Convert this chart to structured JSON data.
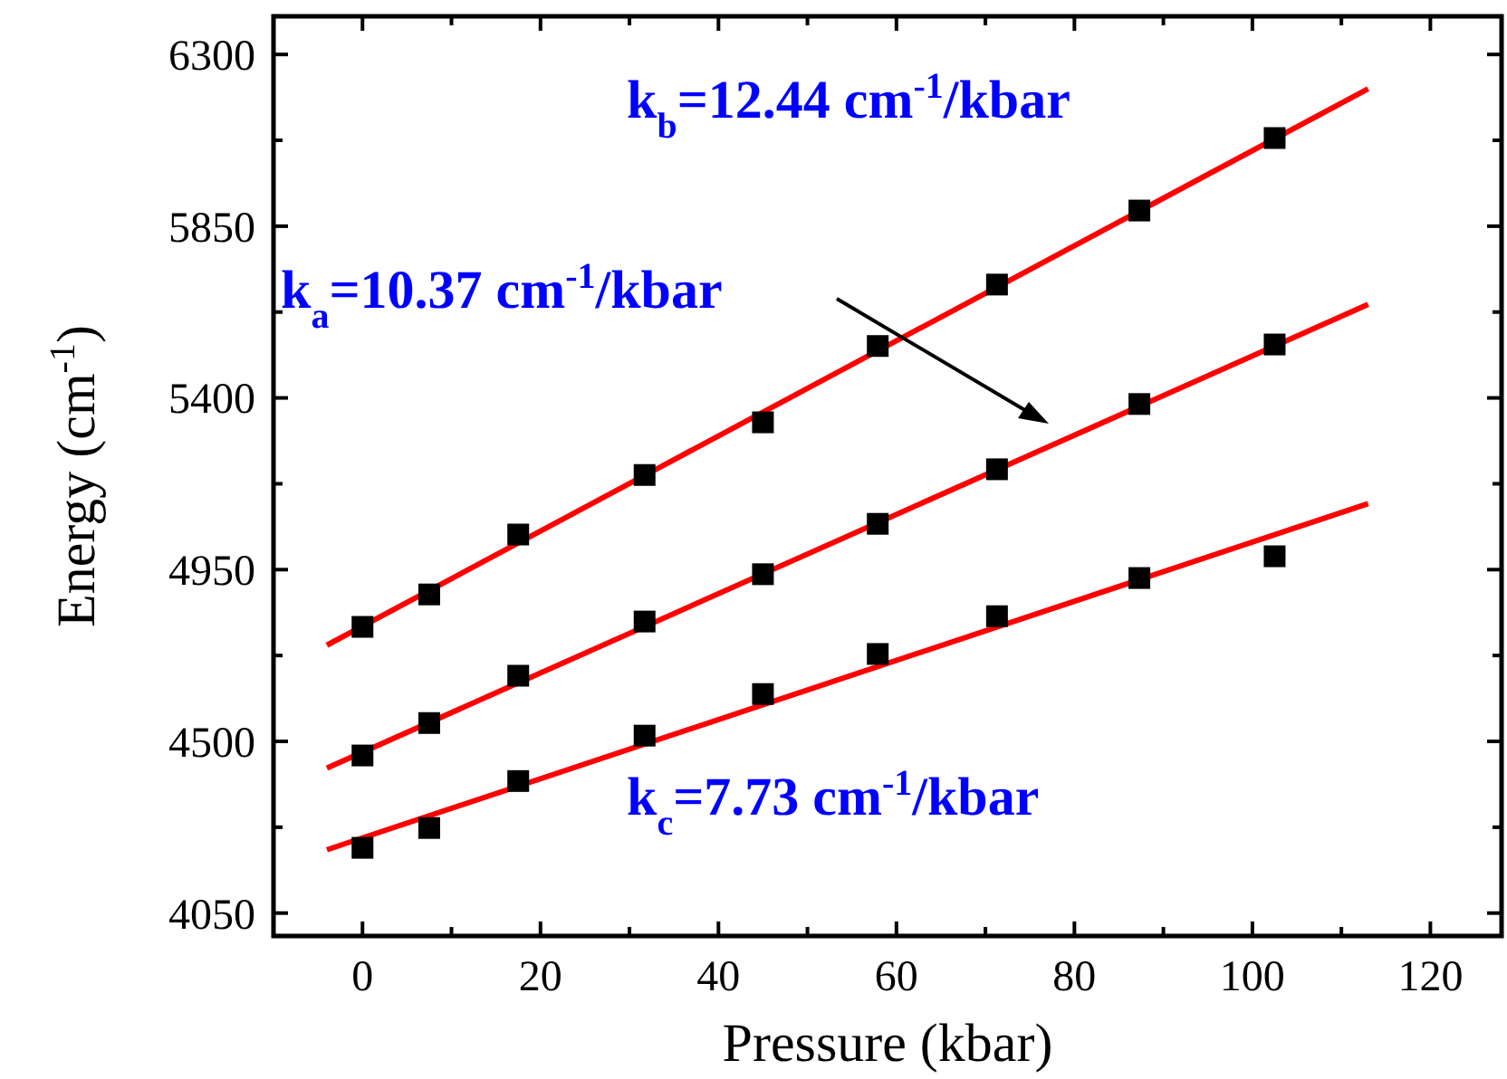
{
  "chart_data": {
    "type": "scatter",
    "xlabel": "Pressure (kbar)",
    "ylabel": "Energy (cm$^{-1}$)",
    "xlim": [
      -10,
      128
    ],
    "ylim": [
      3990,
      6400
    ],
    "xticks": [
      0,
      20,
      40,
      60,
      80,
      100,
      120
    ],
    "yticks": [
      4050,
      4500,
      4950,
      5400,
      5850,
      6300
    ],
    "grid": false,
    "marker": "square",
    "series": [
      {
        "color": "#000000",
        "x": [
          0,
          7.5,
          17.5,
          31.7,
          45,
          57.9,
          71.3,
          87.3,
          102.5
        ],
        "values": [
          4800,
          4885,
          5042,
          5198,
          5336,
          5536,
          5697,
          5891,
          6081
        ]
      },
      {
        "color": "#000000",
        "x": [
          0,
          7.5,
          17.5,
          31.7,
          45,
          57.9,
          71.3,
          87.3,
          102.5
        ],
        "values": [
          4463,
          4548,
          4672,
          4814,
          4938,
          5070,
          5213,
          5384,
          5540
        ]
      },
      {
        "color": "#000000",
        "x": [
          0,
          7.5,
          17.5,
          31.7,
          45,
          57.9,
          71.3,
          87.3,
          102.5
        ],
        "values": [
          4221,
          4273,
          4396,
          4515,
          4624,
          4729,
          4828,
          4928,
          4985
        ]
      },
      {
        "type": "line",
        "color": "#ff0000",
        "marker": "none",
        "x": [
          -4,
          113
        ],
        "values": [
          4752,
          6210
        ]
      },
      {
        "type": "line",
        "color": "#ff0000",
        "marker": "none",
        "x": [
          -4,
          113
        ],
        "values": [
          4430,
          5645
        ]
      },
      {
        "type": "line",
        "color": "#ff0000",
        "marker": "none",
        "x": [
          -4,
          113
        ],
        "values": [
          4216,
          5123
        ]
      }
    ],
    "annotations": [
      "k$_{b}$=12.44 cm$^{-1}$/kbar",
      "k$_{a}$=10.37 cm$^{-1}$/kbar",
      "k$_{c}$=7.73 cm$^{-1}$/kbar"
    ]
  }
}
